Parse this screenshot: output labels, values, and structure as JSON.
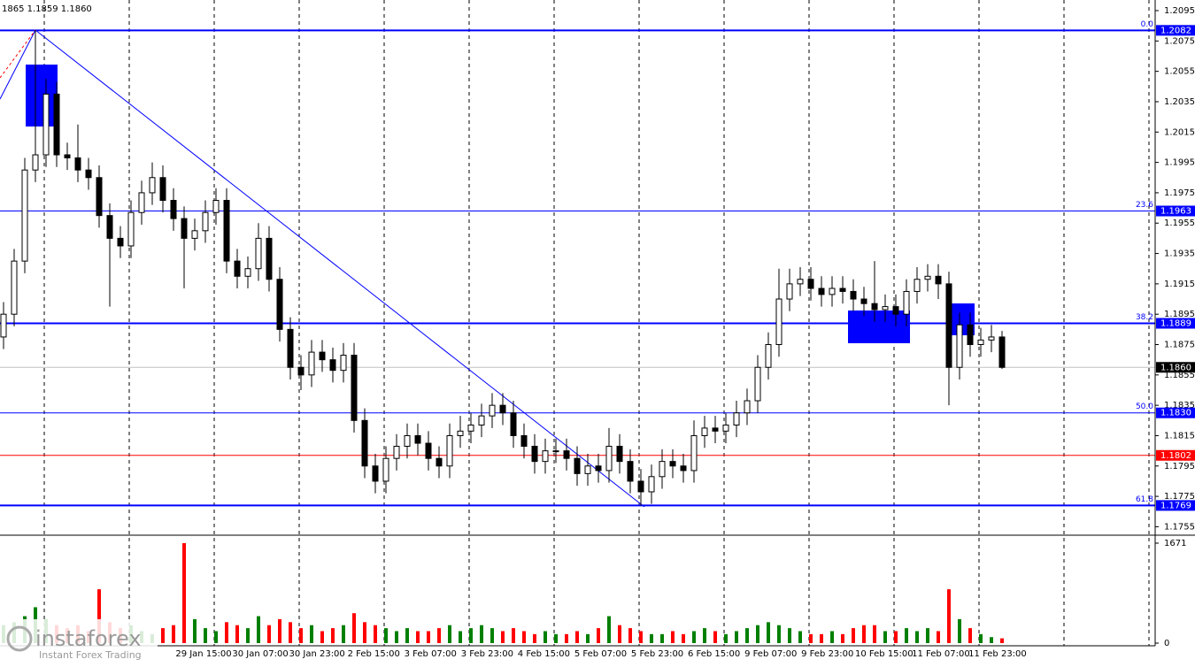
{
  "chart_data": {
    "type": "candlestick",
    "info": "1865 1.1859 1.1860",
    "ylim": [
      1.175,
      1.2102
    ],
    "yticks": [
      1.2095,
      1.2075,
      1.2055,
      1.2035,
      1.2015,
      1.1995,
      1.1975,
      1.1955,
      1.1935,
      1.1915,
      1.1895,
      1.1875,
      1.1855,
      1.1835,
      1.1815,
      1.1795,
      1.1775,
      1.1755
    ],
    "x_labels": [
      "29 Jan 15:00",
      "30 Jan 07:00",
      "30 Jan 23:00",
      "2 Feb 15:00",
      "3 Feb 07:00",
      "3 Feb 23:00",
      "4 Feb 15:00",
      "5 Feb 07:00",
      "5 Feb 23:00",
      "6 Feb 15:00",
      "9 Feb 07:00",
      "9 Feb 23:00",
      "10 Feb 15:00",
      "11 Feb 07:00",
      "11 Feb 23:00"
    ],
    "open": [
      1.188,
      1.1895,
      1.193,
      1.199,
      1.2,
      1.204,
      1.2,
      1.1998,
      1.199,
      1.1985,
      1.196,
      1.1945,
      1.194,
      1.1962,
      1.1975,
      1.1985,
      1.197,
      1.1958,
      1.1945,
      1.195,
      1.1962,
      1.197,
      1.193,
      1.192,
      1.1925,
      1.1945,
      1.1918,
      1.1885,
      1.186,
      1.1855,
      1.187,
      1.1865,
      1.1858,
      1.1868,
      1.1825,
      1.1795,
      1.1785,
      1.18,
      1.1808,
      1.1815,
      1.181,
      1.18,
      1.1795,
      1.1815,
      1.1818,
      1.1822,
      1.1828,
      1.1835,
      1.183,
      1.1815,
      1.1808,
      1.1798,
      1.1805,
      1.1805,
      1.18,
      1.179,
      1.1795,
      1.1792,
      1.1808,
      1.1798,
      1.1785,
      1.1778,
      1.1788,
      1.1798,
      1.1795,
      1.1792,
      1.1815,
      1.182,
      1.1818,
      1.1822,
      1.183,
      1.1838,
      1.186,
      1.1875,
      1.1905,
      1.1915,
      1.1918,
      1.1912,
      1.1908,
      1.1912,
      1.191,
      1.1905,
      1.1902,
      1.1898,
      1.19,
      1.1895,
      1.191,
      1.1918,
      1.192,
      1.1915,
      1.186,
      1.1888,
      1.1875,
      1.1878,
      1.188
    ],
    "high": [
      1.1903,
      1.1938,
      1.1998,
      1.2082,
      1.205,
      1.2048,
      1.2008,
      1.202,
      1.1998,
      1.1993,
      1.1968,
      1.1953,
      1.197,
      1.1983,
      1.1995,
      1.1993,
      1.1978,
      1.1966,
      1.1958,
      1.197,
      1.1978,
      1.1978,
      1.1938,
      1.1933,
      1.1955,
      1.1953,
      1.1926,
      1.1893,
      1.1868,
      1.1878,
      1.1878,
      1.1873,
      1.1876,
      1.1876,
      1.1833,
      1.1803,
      1.1808,
      1.1816,
      1.1823,
      1.1823,
      1.1818,
      1.1808,
      1.1823,
      1.1828,
      1.183,
      1.1836,
      1.1843,
      1.1843,
      1.1838,
      1.1823,
      1.1816,
      1.1813,
      1.1813,
      1.1813,
      1.1808,
      1.1803,
      1.1803,
      1.182,
      1.1816,
      1.1806,
      1.1793,
      1.1796,
      1.1806,
      1.1806,
      1.1803,
      1.1825,
      1.1828,
      1.1828,
      1.183,
      1.1838,
      1.1846,
      1.1868,
      1.1883,
      1.1925,
      1.1925,
      1.1926,
      1.1926,
      1.192,
      1.192,
      1.192,
      1.1918,
      1.1913,
      1.193,
      1.1908,
      1.1908,
      1.1918,
      1.1926,
      1.1928,
      1.1928,
      1.1923,
      1.1896,
      1.1896,
      1.1886,
      1.1888,
      1.1884
    ],
    "low": [
      1.1872,
      1.1887,
      1.1922,
      1.1982,
      1.1992,
      1.1992,
      1.199,
      1.1982,
      1.1977,
      1.1952,
      1.19,
      1.1932,
      1.1932,
      1.1954,
      1.1967,
      1.1962,
      1.195,
      1.1912,
      1.1937,
      1.1942,
      1.1954,
      1.1922,
      1.1912,
      1.1912,
      1.1917,
      1.191,
      1.1877,
      1.1852,
      1.1845,
      1.1847,
      1.1857,
      1.185,
      1.185,
      1.1817,
      1.1787,
      1.1777,
      1.1777,
      1.1792,
      1.18,
      1.1802,
      1.1792,
      1.1787,
      1.1787,
      1.1807,
      1.181,
      1.1814,
      1.182,
      1.1822,
      1.1807,
      1.18,
      1.179,
      1.179,
      1.1797,
      1.1792,
      1.1782,
      1.1782,
      1.1784,
      1.1784,
      1.179,
      1.1777,
      1.1769,
      1.177,
      1.178,
      1.1787,
      1.1784,
      1.1784,
      1.1807,
      1.181,
      1.181,
      1.1814,
      1.1822,
      1.183,
      1.1852,
      1.1867,
      1.1897,
      1.1907,
      1.1904,
      1.19,
      1.19,
      1.1902,
      1.1897,
      1.1894,
      1.189,
      1.189,
      1.1887,
      1.1887,
      1.1902,
      1.191,
      1.1905,
      1.1835,
      1.1852,
      1.1867,
      1.1867,
      1.187,
      1.1859
    ],
    "close": [
      1.1895,
      1.193,
      1.199,
      1.2,
      1.204,
      1.2,
      1.1998,
      1.199,
      1.1985,
      1.196,
      1.1945,
      1.194,
      1.1962,
      1.1975,
      1.1985,
      1.197,
      1.1958,
      1.1945,
      1.195,
      1.1962,
      1.197,
      1.193,
      1.192,
      1.1925,
      1.1945,
      1.1918,
      1.1885,
      1.186,
      1.1855,
      1.187,
      1.1865,
      1.1858,
      1.1868,
      1.1825,
      1.1795,
      1.1785,
      1.18,
      1.1808,
      1.1815,
      1.181,
      1.18,
      1.1795,
      1.1815,
      1.1818,
      1.1822,
      1.1828,
      1.1835,
      1.183,
      1.1815,
      1.1808,
      1.1798,
      1.1805,
      1.1805,
      1.18,
      1.179,
      1.1795,
      1.1792,
      1.1808,
      1.1798,
      1.1785,
      1.1778,
      1.1788,
      1.1798,
      1.1795,
      1.1792,
      1.1815,
      1.182,
      1.1818,
      1.1822,
      1.183,
      1.1838,
      1.186,
      1.1875,
      1.1905,
      1.1915,
      1.1918,
      1.1912,
      1.1908,
      1.1912,
      1.191,
      1.1905,
      1.1902,
      1.1898,
      1.19,
      1.1895,
      1.191,
      1.1918,
      1.192,
      1.1915,
      1.186,
      1.1888,
      1.1875,
      1.1878,
      1.188,
      1.186
    ],
    "volume": [
      300,
      350,
      450,
      600,
      400,
      300,
      250,
      300,
      200,
      900,
      350,
      250,
      300,
      200,
      150,
      250,
      300,
      1671,
      400,
      250,
      200,
      350,
      300,
      250,
      450,
      300,
      400,
      350,
      250,
      300,
      200,
      250,
      300,
      500,
      350,
      300,
      250,
      200,
      250,
      200,
      200,
      250,
      300,
      200,
      250,
      300,
      250,
      200,
      250,
      200,
      150,
      200,
      150,
      150,
      200,
      150,
      250,
      450,
      300,
      250,
      200,
      150,
      150,
      200,
      150,
      200,
      250,
      200,
      150,
      200,
      250,
      300,
      350,
      300,
      250,
      200,
      150,
      150,
      200,
      150,
      250,
      300,
      300,
      200,
      200,
      250,
      200,
      250,
      200,
      900,
      400,
      250,
      150,
      100,
      80
    ],
    "volume_ylim": [
      0,
      1671
    ],
    "volume_yticks": [
      1671,
      0
    ],
    "up_volume_color": "#008000",
    "down_volume_color": "#ff0000",
    "levels": [
      {
        "ratio": {
          "value": 0,
          "label": "0.0"
        },
        "price": 1.2082,
        "color": "#0000ff",
        "style": "thick"
      },
      {
        "ratio": 23.6,
        "price": 1.1963,
        "color": "#0000ff",
        "style": "thin"
      },
      {
        "ratio": 38.2,
        "price": 1.1889,
        "color": "#0000ff",
        "style": "thick"
      },
      {
        "ratio": {
          "value": 50,
          "label": "50.0"
        },
        "price": {
          "value": 1.183,
          "label": "1.1830"
        },
        "color": "#0000ff",
        "style": "thin"
      },
      {
        "ratio": 61.8,
        "price": 1.1769,
        "color": "#0000ff",
        "style": "thick"
      }
    ],
    "red_line": {
      "price": 1.1802,
      "color": "#ff0000"
    },
    "current_price": {
      "value": 1.186,
      "label": "1.1860"
    },
    "watermark": {
      "brand": "instaforex",
      "slogan": "Instant Forex Trading"
    }
  }
}
